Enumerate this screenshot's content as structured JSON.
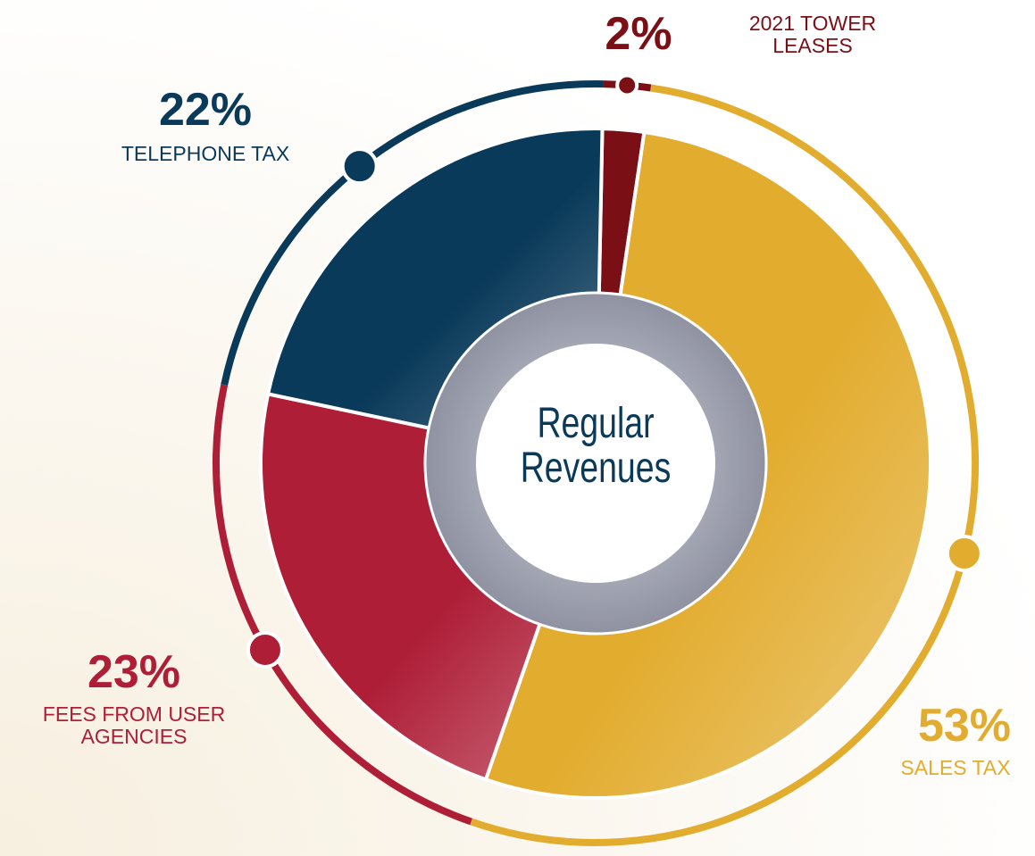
{
  "chart_data": {
    "type": "pie",
    "center_label": "Regular Revenues",
    "categories": [
      "2021 TOWER LEASES",
      "SALES TAX",
      "FEES FROM USER AGENCIES",
      "TELEPHONE TAX"
    ],
    "values": [
      2,
      53,
      23,
      22
    ],
    "value_labels": [
      "2%",
      "53%",
      "23%",
      "22%"
    ],
    "colors": [
      "#7a1016",
      "#e2ac2e",
      "#ae1e37",
      "#0a3a5a"
    ]
  }
}
